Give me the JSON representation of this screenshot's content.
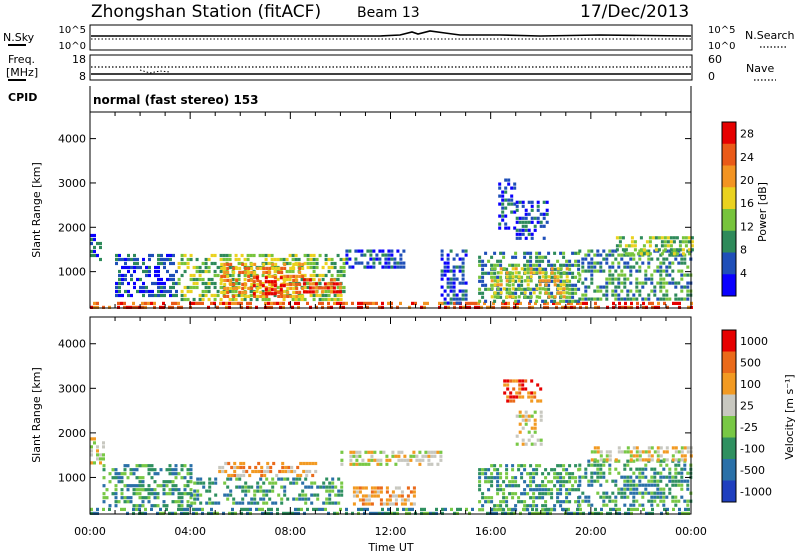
{
  "header": {
    "station": "Zhongshan Station (fitACF)",
    "beam": "Beam 13",
    "date": "17/Dec/2013"
  },
  "panels": {
    "nsky": {
      "left_label": "N.Sky",
      "ticks": [
        "10^5",
        "10^0"
      ],
      "right_label": "N.Search",
      "right_ticks": [
        "10^5",
        "10^0"
      ]
    },
    "freq": {
      "left_label_1": "Freq.",
      "left_label_2": "[MHz]",
      "ticks": [
        "18",
        "8"
      ],
      "right_label": "Nave",
      "right_ticks": [
        "60",
        "0"
      ]
    },
    "cpid": {
      "label": "CPID",
      "value": "normal (fast stereo) 153"
    }
  },
  "chart_data": [
    {
      "type": "heatmap",
      "title": "",
      "xlabel": "Time UT",
      "ylabel": "Slant Range [km]",
      "x_ticks": [
        "00:00",
        "04:00",
        "08:00",
        "12:00",
        "16:00",
        "20:00",
        "00:00"
      ],
      "y_ticks": [
        1000,
        2000,
        3000,
        4000
      ],
      "xlim": [
        0,
        24
      ],
      "ylim": [
        180,
        4600
      ],
      "colorbar": {
        "label": "Power [dB]",
        "ticks": [
          4,
          8,
          12,
          16,
          20,
          24,
          28
        ],
        "range": [
          0,
          30
        ],
        "colors": [
          "#0a00ff",
          "#1f4fb8",
          "#2e8a5a",
          "#77c43c",
          "#ead21f",
          "#f39422",
          "#ea5a18",
          "#e60000"
        ]
      },
      "regions": [
        {
          "t0": 0.0,
          "t1": 0.4,
          "r0": 1300,
          "r1": 1850,
          "level": 1
        },
        {
          "t0": 0.0,
          "t1": 24.0,
          "r0": 200,
          "r1": 320,
          "level": 6
        },
        {
          "t0": 1.0,
          "t1": 3.5,
          "r0": 450,
          "r1": 1400,
          "level": 1
        },
        {
          "t0": 3.5,
          "t1": 10.2,
          "r0": 350,
          "r1": 1400,
          "level": 3
        },
        {
          "t0": 5.2,
          "t1": 8.5,
          "r0": 450,
          "r1": 1200,
          "level": 5
        },
        {
          "t0": 6.5,
          "t1": 7.7,
          "r0": 500,
          "r1": 900,
          "level": 7
        },
        {
          "t0": 8.5,
          "t1": 10.0,
          "r0": 500,
          "r1": 850,
          "level": 6
        },
        {
          "t0": 10.2,
          "t1": 12.5,
          "r0": 1100,
          "r1": 1500,
          "level": 1
        },
        {
          "t0": 14.0,
          "t1": 15.0,
          "r0": 300,
          "r1": 1500,
          "level": 1
        },
        {
          "t0": 15.5,
          "t1": 19.5,
          "r0": 300,
          "r1": 1450,
          "level": 2
        },
        {
          "t0": 16.0,
          "t1": 19.0,
          "r0": 400,
          "r1": 1100,
          "level": 4
        },
        {
          "t0": 16.3,
          "t1": 17.0,
          "r0": 2000,
          "r1": 3100,
          "level": 1
        },
        {
          "t0": 17.0,
          "t1": 18.2,
          "r0": 1700,
          "r1": 2600,
          "level": 1
        },
        {
          "t0": 19.5,
          "t1": 24.0,
          "r0": 400,
          "r1": 1500,
          "level": 2
        },
        {
          "t0": 21.0,
          "t1": 24.0,
          "r0": 1400,
          "r1": 1800,
          "level": 3
        }
      ]
    },
    {
      "type": "heatmap",
      "title": "",
      "xlabel": "Time UT",
      "ylabel": "Slant Range [km]",
      "x_ticks": [
        "00:00",
        "04:00",
        "08:00",
        "12:00",
        "16:00",
        "20:00",
        "00:00"
      ],
      "y_ticks": [
        1000,
        2000,
        3000,
        4000
      ],
      "xlim": [
        0,
        24
      ],
      "ylim": [
        180,
        4600
      ],
      "colorbar": {
        "label": "Velocity [m s⁻¹]",
        "ticks": [
          1000,
          500,
          100,
          25,
          -25,
          -100,
          -500,
          -1000
        ],
        "colors": [
          "#1f3fbf",
          "#2a70a8",
          "#2f9060",
          "#78c845",
          "#c8c8c0",
          "#f29a22",
          "#ea6a1a",
          "#e60000"
        ]
      },
      "regions": [
        {
          "t0": 0.0,
          "t1": 24.0,
          "r0": 200,
          "r1": 320,
          "level": 2
        },
        {
          "t0": 0.0,
          "t1": 0.5,
          "r0": 1300,
          "r1": 1900,
          "level": 4
        },
        {
          "t0": 0.5,
          "t1": 4.0,
          "r0": 350,
          "r1": 1300,
          "level": 2
        },
        {
          "t0": 4.0,
          "t1": 10.0,
          "r0": 400,
          "r1": 1000,
          "level": 2
        },
        {
          "t0": 5.0,
          "t1": 9.0,
          "r0": 1000,
          "r1": 1350,
          "level": 5
        },
        {
          "t0": 10.0,
          "t1": 14.0,
          "r0": 1300,
          "r1": 1600,
          "level": 4
        },
        {
          "t0": 10.5,
          "t1": 13.0,
          "r0": 400,
          "r1": 800,
          "level": 5
        },
        {
          "t0": 15.5,
          "t1": 19.5,
          "r0": 300,
          "r1": 1300,
          "level": 2
        },
        {
          "t0": 16.5,
          "t1": 18.0,
          "r0": 2700,
          "r1": 3200,
          "level": 6
        },
        {
          "t0": 17.0,
          "t1": 18.0,
          "r0": 1700,
          "r1": 2500,
          "level": 4
        },
        {
          "t0": 19.5,
          "t1": 24.0,
          "r0": 400,
          "r1": 1400,
          "level": 2
        },
        {
          "t0": 20.0,
          "t1": 24.0,
          "r0": 1400,
          "r1": 1700,
          "level": 4
        }
      ]
    }
  ]
}
